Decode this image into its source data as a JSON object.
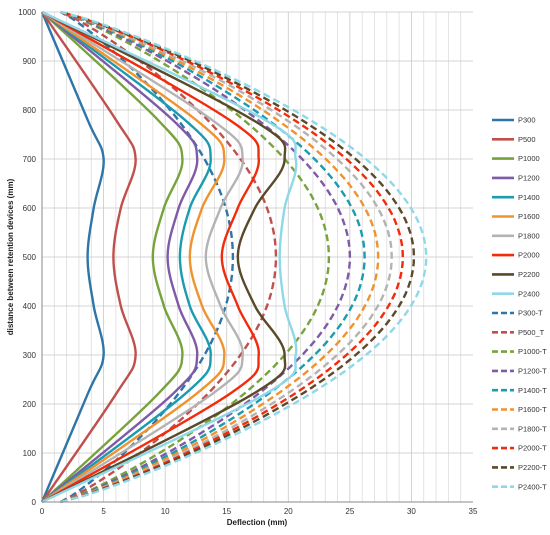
{
  "chart_data": {
    "type": "line",
    "title": "",
    "xlabel": "Deflection (mm)",
    "ylabel": "distance between retention devices (mm)",
    "xlim": [
      0,
      35
    ],
    "ylim": [
      0,
      1000
    ],
    "x_ticks": [
      0,
      5,
      10,
      15,
      20,
      25,
      30,
      35
    ],
    "y_ticks": [
      0,
      100,
      200,
      300,
      400,
      500,
      600,
      700,
      800,
      900,
      1000
    ],
    "grid": true,
    "legend_position": "right",
    "series": [
      {
        "name": "P300",
        "color": "#2E75A8",
        "dashed": false,
        "curve": "wavy",
        "x": [
          0,
          3.7,
          5.0,
          4.2,
          3.7,
          4.2,
          5.0,
          3.7,
          0
        ],
        "y": [
          0,
          220,
          300,
          400,
          500,
          600,
          700,
          780,
          1000
        ]
      },
      {
        "name": "P500",
        "color": "#C0504D",
        "dashed": false,
        "curve": "wavy",
        "x": [
          0,
          6.0,
          7.6,
          6.4,
          5.8,
          6.4,
          7.6,
          6.0,
          0
        ],
        "y": [
          0,
          220,
          300,
          400,
          500,
          600,
          700,
          780,
          1000
        ]
      },
      {
        "name": "P1000",
        "color": "#77A33D",
        "dashed": false,
        "curve": "wavy",
        "x": [
          0,
          9.4,
          11.4,
          9.9,
          9.0,
          9.9,
          11.4,
          9.4,
          0
        ],
        "y": [
          0,
          220,
          300,
          400,
          500,
          600,
          700,
          780,
          1000
        ]
      },
      {
        "name": "P1200",
        "color": "#7F5AA6",
        "dashed": false,
        "curve": "wavy",
        "x": [
          0,
          10.6,
          12.6,
          11.1,
          10.2,
          11.1,
          12.6,
          10.6,
          0
        ],
        "y": [
          0,
          220,
          300,
          400,
          500,
          600,
          700,
          780,
          1000
        ]
      },
      {
        "name": "P1400",
        "color": "#1A9BB0",
        "dashed": false,
        "curve": "wavy",
        "x": [
          0,
          11.6,
          13.7,
          12.0,
          11.2,
          12.0,
          13.7,
          11.6,
          0
        ],
        "y": [
          0,
          220,
          300,
          400,
          500,
          600,
          700,
          780,
          1000
        ]
      },
      {
        "name": "P1600",
        "color": "#F0922E",
        "dashed": false,
        "curve": "wavy",
        "x": [
          0,
          12.5,
          14.8,
          13.0,
          12.0,
          13.0,
          14.8,
          12.5,
          0
        ],
        "y": [
          0,
          220,
          300,
          400,
          500,
          600,
          700,
          780,
          1000
        ]
      },
      {
        "name": "P1800",
        "color": "#B3B3B3",
        "dashed": false,
        "curve": "wavy",
        "x": [
          0,
          13.8,
          16.3,
          14.5,
          13.3,
          14.5,
          16.3,
          13.8,
          0
        ],
        "y": [
          0,
          220,
          300,
          400,
          500,
          600,
          700,
          780,
          1000
        ]
      },
      {
        "name": "P2000",
        "color": "#F22B0B",
        "dashed": false,
        "curve": "wavy",
        "x": [
          0,
          15.2,
          17.6,
          15.9,
          14.6,
          15.9,
          17.6,
          15.2,
          0
        ],
        "y": [
          0,
          220,
          300,
          400,
          500,
          600,
          700,
          780,
          1000
        ]
      },
      {
        "name": "P2200",
        "color": "#5A4A2A",
        "dashed": false,
        "curve": "wavy",
        "x": [
          0,
          17.1,
          19.7,
          17.3,
          15.9,
          17.3,
          19.7,
          17.1,
          0
        ],
        "y": [
          0,
          220,
          300,
          400,
          500,
          600,
          700,
          780,
          1000
        ]
      },
      {
        "name": "P2400",
        "color": "#8ED8E8",
        "dashed": false,
        "curve": "wavy",
        "x": [
          0,
          18.1,
          20.6,
          19.7,
          19.3,
          19.7,
          20.6,
          18.1,
          0
        ],
        "y": [
          0,
          220,
          300,
          400,
          500,
          600,
          700,
          780,
          1000
        ]
      },
      {
        "name": "P300-T",
        "color": "#2E75A8",
        "dashed": true,
        "curve": "bow",
        "x": [
          1.5,
          15.5,
          1.5
        ],
        "y": [
          0,
          500,
          1000
        ]
      },
      {
        "name": "P500_T",
        "color": "#C0504D",
        "dashed": true,
        "curve": "bow",
        "x": [
          1.5,
          19.0,
          1.5
        ],
        "y": [
          0,
          500,
          1000
        ]
      },
      {
        "name": "P1000-T",
        "color": "#77A33D",
        "dashed": true,
        "curve": "bow",
        "x": [
          1.5,
          23.3,
          1.5
        ],
        "y": [
          0,
          500,
          1000
        ]
      },
      {
        "name": "P1200-T",
        "color": "#7F5AA6",
        "dashed": true,
        "curve": "bow",
        "x": [
          1.5,
          25.0,
          1.5
        ],
        "y": [
          0,
          500,
          1000
        ]
      },
      {
        "name": "P1400-T",
        "color": "#1A9BB0",
        "dashed": true,
        "curve": "bow",
        "x": [
          1.5,
          26.2,
          1.5
        ],
        "y": [
          0,
          500,
          1000
        ]
      },
      {
        "name": "P1600-T",
        "color": "#F0922E",
        "dashed": true,
        "curve": "bow",
        "x": [
          1.5,
          27.3,
          1.5
        ],
        "y": [
          0,
          500,
          1000
        ]
      },
      {
        "name": "P1800-T",
        "color": "#B3B3B3",
        "dashed": true,
        "curve": "bow",
        "x": [
          1.5,
          28.4,
          1.5
        ],
        "y": [
          0,
          500,
          1000
        ]
      },
      {
        "name": "P2000-T",
        "color": "#F22B0B",
        "dashed": true,
        "curve": "bow",
        "x": [
          1.5,
          29.3,
          1.5
        ],
        "y": [
          0,
          500,
          1000
        ]
      },
      {
        "name": "P2200-T",
        "color": "#5A4A2A",
        "dashed": true,
        "curve": "bow",
        "x": [
          1.5,
          30.2,
          1.5
        ],
        "y": [
          0,
          500,
          1000
        ]
      },
      {
        "name": "P2400-T",
        "color": "#8ED8E8",
        "dashed": true,
        "curve": "bow",
        "x": [
          1.5,
          31.2,
          1.5
        ],
        "y": [
          0,
          500,
          1000
        ]
      }
    ]
  }
}
